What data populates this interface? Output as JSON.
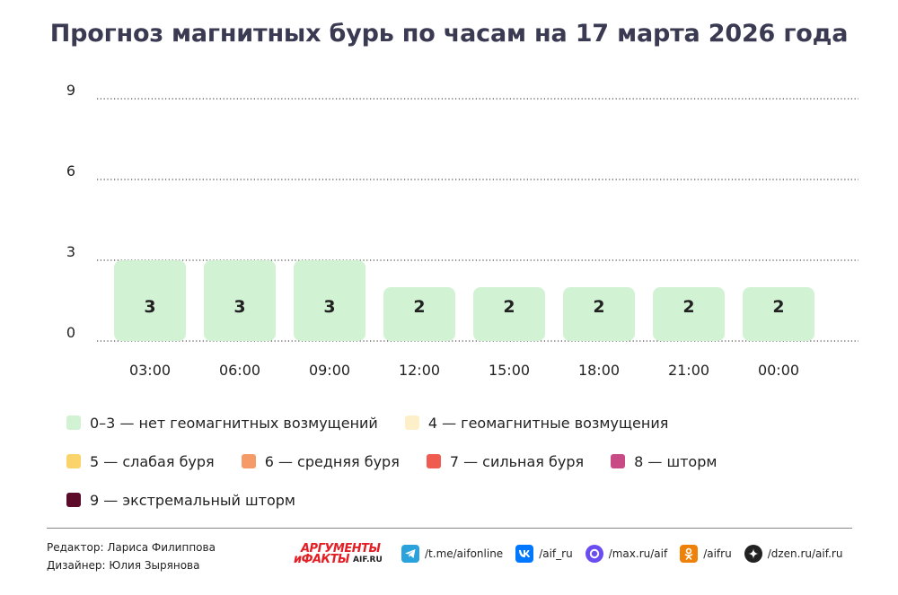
{
  "title": "Прогноз магнитных бурь по часам на 17 марта 2026 года",
  "chart_data": {
    "type": "bar",
    "categories": [
      "03:00",
      "06:00",
      "09:00",
      "12:00",
      "15:00",
      "18:00",
      "21:00",
      "00:00"
    ],
    "values": [
      3,
      3,
      3,
      2,
      2,
      2,
      2,
      2
    ],
    "yticks": [
      0,
      3,
      6,
      9
    ],
    "ylim": [
      0,
      9
    ],
    "grid": "dotted horizontal",
    "bar_color": "#d2f2d4",
    "legend_placement": "bottom"
  },
  "legend": [
    {
      "label": "0–3 — нет геомагнитных возмущений",
      "color": "#d2f2d4"
    },
    {
      "label": "4 — геомагнитные возмущения",
      "color": "#fdf0c9"
    },
    {
      "label": "5 — слабая буря",
      "color": "#fbd36b"
    },
    {
      "label": "6 — средняя буря",
      "color": "#f59b68"
    },
    {
      "label": "7 — сильная буря",
      "color": "#ef5b4f"
    },
    {
      "label": "8 — шторм",
      "color": "#c94b86"
    },
    {
      "label": "9 — экстремальный шторм",
      "color": "#5b0a2a"
    }
  ],
  "credits": {
    "editor": "Редактор: Лариса Филиппова",
    "designer": "Дизайнер: Юлия Зырянова"
  },
  "logo": {
    "line1": "АРГУМЕНТЫ",
    "line2": "иФАКТЫ",
    "suffix": "AIF.RU"
  },
  "socials": [
    {
      "icon": "telegram-icon",
      "text": "/t.me/aifonline",
      "color": "#2aa3dc"
    },
    {
      "icon": "vk-icon",
      "text": "/aif_ru",
      "color": "#0077ff"
    },
    {
      "icon": "max-icon",
      "text": "/max.ru/aif",
      "color": "#6a4cf0"
    },
    {
      "icon": "odnoklassniki-icon",
      "text": "/aifru",
      "color": "#ee8208"
    },
    {
      "icon": "dzen-icon",
      "text": "/dzen.ru/aif.ru",
      "color": "#222222"
    }
  ]
}
